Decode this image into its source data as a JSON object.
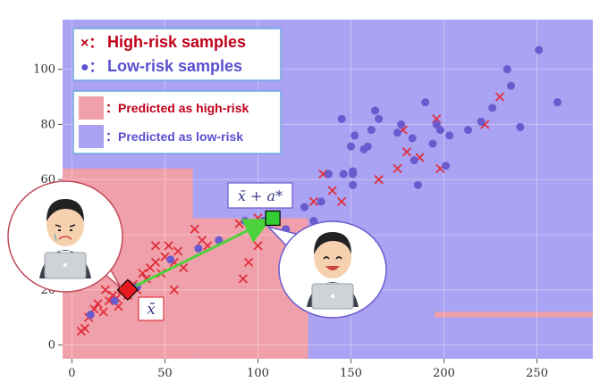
{
  "chart_data": {
    "type": "scatter",
    "xlim": [
      -5,
      280
    ],
    "ylim": [
      -5,
      118
    ],
    "x_ticks": [
      0,
      50,
      100,
      150,
      200,
      250
    ],
    "y_ticks": [
      0,
      20,
      40,
      60,
      80,
      100
    ],
    "legend": {
      "high_risk_samples": "High-risk samples",
      "low_risk_samples": "Low-risk samples",
      "predicted_high": "Predicted as high-risk",
      "predicted_low": "Predicted as low-risk",
      "high_marker": "×：",
      "low_marker": "●：",
      "region_prefix": "："
    },
    "colors": {
      "high_risk": "#e0303d",
      "low_risk": "#6a5acd",
      "region_high": "#f0a0aa",
      "region_low": "#aaa2f2",
      "arrow": "#4cd13c",
      "start_marker": "#e8191f",
      "end_marker": "#33cc33",
      "legend_high_text": "#c0001a",
      "legend_low_text": "#5a4fcf"
    },
    "region_high_steps": [
      {
        "x0": -5,
        "x1": 65,
        "y_top": 64
      },
      {
        "x0": 65,
        "x1": 127,
        "y_top": 46
      },
      {
        "x0": 195,
        "x1": 280,
        "y_top": 12,
        "y_bottom": 10
      }
    ],
    "series": [
      {
        "name": "High-risk samples",
        "marker": "x",
        "points": [
          [
            5,
            5
          ],
          [
            7,
            6
          ],
          [
            9,
            10
          ],
          [
            12,
            13
          ],
          [
            14,
            15
          ],
          [
            17,
            12
          ],
          [
            20,
            16
          ],
          [
            22,
            18
          ],
          [
            25,
            14
          ],
          [
            27,
            20
          ],
          [
            30,
            18
          ],
          [
            33,
            22
          ],
          [
            35,
            20
          ],
          [
            40,
            24
          ],
          [
            42,
            28
          ],
          [
            45,
            30
          ],
          [
            48,
            26
          ],
          [
            50,
            32
          ],
          [
            52,
            36
          ],
          [
            55,
            30
          ],
          [
            55,
            20
          ],
          [
            57,
            34
          ],
          [
            60,
            28
          ],
          [
            45,
            36
          ],
          [
            38,
            26
          ],
          [
            24,
            17
          ],
          [
            18,
            20
          ],
          [
            66,
            42
          ],
          [
            70,
            38
          ],
          [
            73,
            36
          ],
          [
            92,
            24
          ],
          [
            95,
            30
          ],
          [
            100,
            36
          ],
          [
            100,
            46
          ],
          [
            90,
            44
          ],
          [
            130,
            52
          ],
          [
            135,
            62
          ],
          [
            140,
            56
          ],
          [
            145,
            52
          ],
          [
            165,
            60
          ],
          [
            175,
            64
          ],
          [
            180,
            70
          ],
          [
            178,
            78
          ],
          [
            187,
            68
          ],
          [
            196,
            82
          ],
          [
            198,
            64
          ],
          [
            222,
            80
          ],
          [
            230,
            90
          ]
        ]
      },
      {
        "name": "Low-risk samples",
        "marker": "o",
        "points": [
          [
            10,
            11
          ],
          [
            23,
            16
          ],
          [
            35,
            21
          ],
          [
            53,
            31
          ],
          [
            68,
            35
          ],
          [
            79,
            38
          ],
          [
            93,
            45
          ],
          [
            103,
            45
          ],
          [
            115,
            42
          ],
          [
            125,
            50
          ],
          [
            130,
            45
          ],
          [
            134,
            52
          ],
          [
            138,
            62
          ],
          [
            146,
            62
          ],
          [
            145,
            82
          ],
          [
            150,
            72
          ],
          [
            151,
            63
          ],
          [
            151,
            58
          ],
          [
            151,
            62
          ],
          [
            152,
            76
          ],
          [
            157,
            71
          ],
          [
            159,
            72
          ],
          [
            161,
            78
          ],
          [
            163,
            85
          ],
          [
            165,
            82
          ],
          [
            175,
            77
          ],
          [
            177,
            80
          ],
          [
            183,
            75
          ],
          [
            184,
            67
          ],
          [
            186,
            58
          ],
          [
            190,
            88
          ],
          [
            194,
            73
          ],
          [
            196,
            80
          ],
          [
            198,
            78
          ],
          [
            201,
            65
          ],
          [
            203,
            76
          ],
          [
            213,
            78
          ],
          [
            220,
            81
          ],
          [
            226,
            86
          ],
          [
            234,
            100
          ],
          [
            236,
            94
          ],
          [
            241,
            79
          ],
          [
            251,
            107
          ],
          [
            261,
            88
          ]
        ]
      }
    ],
    "counterfactual": {
      "start": [
        30,
        20
      ],
      "end": [
        108,
        46
      ],
      "start_label": "x̄",
      "end_label": "x̄ + a*"
    }
  }
}
